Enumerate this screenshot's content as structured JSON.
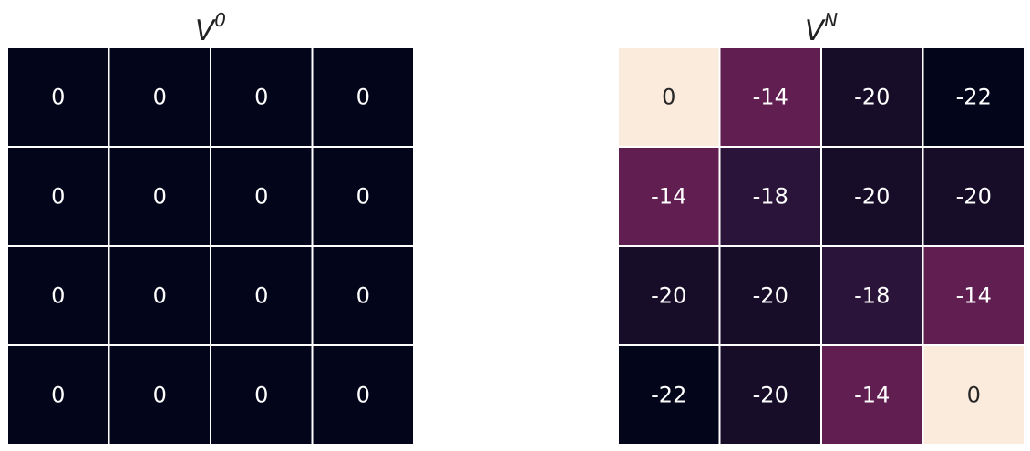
{
  "chart_data": [
    {
      "type": "heatmap",
      "title_base": "V",
      "title_superscript": "0",
      "rows": 4,
      "cols": 4,
      "values": [
        [
          0,
          0,
          0,
          0
        ],
        [
          0,
          0,
          0,
          0
        ],
        [
          0,
          0,
          0,
          0
        ],
        [
          0,
          0,
          0,
          0
        ]
      ],
      "vmin": 0,
      "vmax": 0,
      "colorbar": false,
      "annot": true,
      "grid_lines": "white"
    },
    {
      "type": "heatmap",
      "title_base": "V",
      "title_superscript": "N",
      "rows": 4,
      "cols": 4,
      "values": [
        [
          0,
          -14,
          -20,
          -22
        ],
        [
          -14,
          -18,
          -20,
          -20
        ],
        [
          -20,
          -20,
          -18,
          -14
        ],
        [
          -22,
          -20,
          -14,
          0
        ]
      ],
      "vmin": -22,
      "vmax": 0,
      "colorbar": false,
      "annot": true,
      "grid_lines": "white"
    }
  ],
  "colors": {
    "low": "#03051a",
    "mid": "#c0194f",
    "high": "#faebdd",
    "text_light": "#ffffff",
    "text_dark": "#262626"
  }
}
